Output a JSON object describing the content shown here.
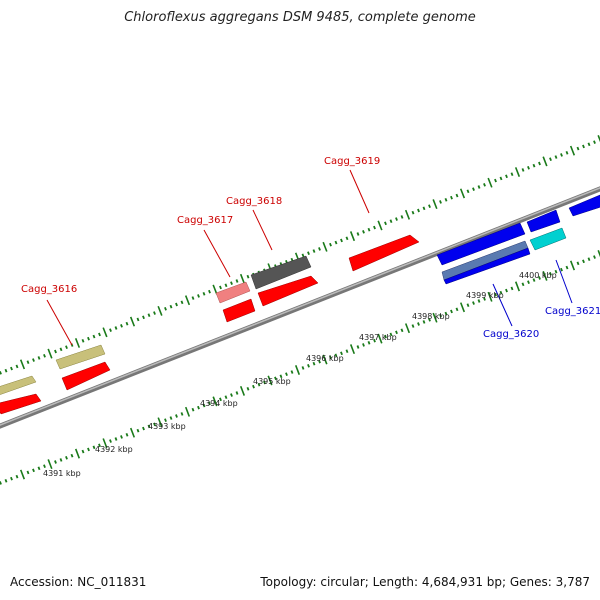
{
  "header": {
    "title": "Chloroflexus aggregans DSM 9485, complete genome"
  },
  "footer": {
    "accession": "Accession: NC_011831",
    "topology": "Topology: circular; Length: 4,684,931 bp; Genes: 3,787"
  },
  "colors": {
    "forward_gene": "#ff0000",
    "reverse_gene": "#0000ee",
    "forward_label": "#cc0000",
    "reverse_label": "#0000cc",
    "backbone": "#888888",
    "ticks": "#1a7a1a",
    "olive": "#c8c07a",
    "dark_gray": "#555555",
    "pink": "#f08080",
    "cyan": "#00d0d0",
    "steel": "#5a7ab0"
  },
  "genes": [
    {
      "name": "Cagg_3616",
      "strand": "forward"
    },
    {
      "name": "Cagg_3617",
      "strand": "forward"
    },
    {
      "name": "Cagg_3618",
      "strand": "forward"
    },
    {
      "name": "Cagg_3619",
      "strand": "forward"
    },
    {
      "name": "Cagg_3620",
      "strand": "reverse"
    },
    {
      "name": "Cagg_3621",
      "strand": "reverse"
    }
  ],
  "scale_labels": [
    "4391 kbp",
    "4392 kbp",
    "4393 kbp",
    "4394 kbp",
    "4395 kbp",
    "4396 kbp",
    "4397 kbp",
    "4398 kbp",
    "4399 kbp",
    "4400 kbp"
  ]
}
